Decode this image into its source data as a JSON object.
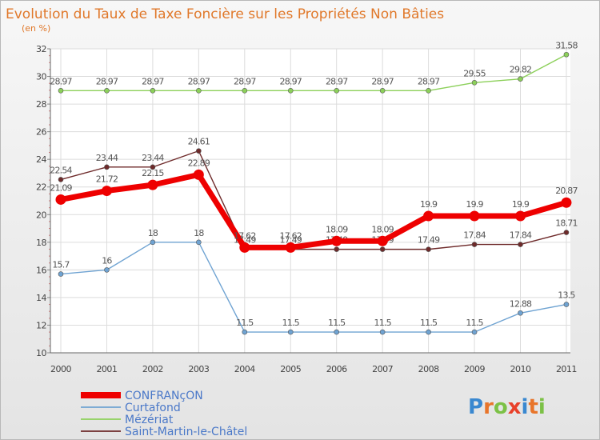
{
  "chart_data": {
    "type": "line",
    "title": "Evolution du Taux de Taxe Foncière sur les Propriétés Non Bâties",
    "unit_label": "(en %)",
    "categories": [
      "2000",
      "2001",
      "2002",
      "2003",
      "2004",
      "2005",
      "2006",
      "2007",
      "2008",
      "2009",
      "2010",
      "2011"
    ],
    "ylim": [
      10,
      32
    ],
    "yticks": [
      10,
      12,
      14,
      16,
      18,
      20,
      22,
      24,
      26,
      28,
      30,
      32
    ],
    "grid": true,
    "legend_position": "bottom-left",
    "series": [
      {
        "name": "Mézériat",
        "color": "#8cd05a",
        "emphasis": false,
        "values": [
          28.97,
          28.97,
          28.97,
          28.97,
          28.97,
          28.97,
          28.97,
          28.97,
          28.97,
          29.55,
          29.82,
          31.58
        ],
        "labels": [
          "28.97",
          "28.97",
          "28.97",
          "28.97",
          "28.97",
          "28.97",
          "28.97",
          "28.97",
          "28.97",
          "29.55",
          "29.82",
          "31.58"
        ]
      },
      {
        "name": "Curtafond",
        "color": "#6fa3d2",
        "emphasis": false,
        "values": [
          15.7,
          16,
          18,
          18,
          11.5,
          11.5,
          11.5,
          11.5,
          11.5,
          11.5,
          12.88,
          13.5
        ],
        "labels": [
          "15.7",
          "16",
          "18",
          "18",
          "11.5",
          "11.5",
          "11.5",
          "11.5",
          "11.5",
          "11.5",
          "12.88",
          "13.5"
        ]
      },
      {
        "name": "Saint-Martin-le-Châtel",
        "color": "#6e2a2a",
        "emphasis": false,
        "values": [
          22.54,
          23.44,
          23.44,
          24.61,
          17.49,
          17.49,
          17.49,
          17.49,
          17.49,
          17.84,
          17.84,
          18.71
        ],
        "labels": [
          "22.54",
          "23.44",
          "23.44",
          "24.61",
          "17.49",
          "17.49",
          "17.49",
          "17.49",
          "17.49",
          "17.84",
          "17.84",
          "18.71"
        ]
      },
      {
        "name": "CONFRANçON",
        "color": "#ee0000",
        "emphasis": true,
        "values": [
          21.09,
          21.72,
          22.15,
          22.89,
          17.62,
          17.62,
          18.09,
          18.09,
          19.9,
          19.9,
          19.9,
          20.87
        ],
        "labels": [
          "21.09",
          "21.72",
          "22.15",
          "22.89",
          "17.62",
          "17.62",
          "18.09",
          "18.09",
          "19.9",
          "19.9",
          "19.9",
          "20.87"
        ]
      }
    ],
    "legend_order": [
      "CONFRANçON",
      "Curtafond",
      "Mézériat",
      "Saint-Martin-le-Châtel"
    ]
  },
  "brand": {
    "text": "Proxiti",
    "letters": [
      "P",
      "r",
      "o",
      "x",
      "i",
      "t",
      "i"
    ],
    "letter_colors": [
      "#3a88d0",
      "#e8752a",
      "#7cc146",
      "#e8402a",
      "#3a88d0",
      "#e8752a",
      "#7cc146"
    ]
  }
}
